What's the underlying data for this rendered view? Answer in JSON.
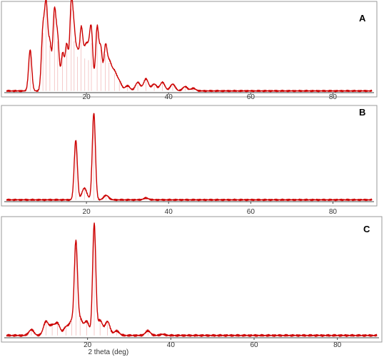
{
  "colors": {
    "trace": "#cc0000",
    "frame": "#9a9a9a",
    "axis": "#444444"
  },
  "chart_data": [
    {
      "panel": "A",
      "type": "line",
      "xlim": [
        0,
        90
      ],
      "xticks": [
        20,
        40,
        60,
        80
      ],
      "tick_labels": [
        "20",
        "40",
        "60",
        "80"
      ],
      "ylim": [
        0,
        100
      ],
      "baseline": 2,
      "peaks": [
        {
          "x": 6.3,
          "y": 50
        },
        {
          "x": 9.4,
          "y": 70
        },
        {
          "x": 10.2,
          "y": 98
        },
        {
          "x": 11.1,
          "y": 55
        },
        {
          "x": 12.2,
          "y": 92
        },
        {
          "x": 13.0,
          "y": 60
        },
        {
          "x": 14.2,
          "y": 45
        },
        {
          "x": 15.2,
          "y": 55
        },
        {
          "x": 16.3,
          "y": 98
        },
        {
          "x": 17.0,
          "y": 60
        },
        {
          "x": 17.8,
          "y": 42
        },
        {
          "x": 18.7,
          "y": 62
        },
        {
          "x": 19.6,
          "y": 40
        },
        {
          "x": 20.5,
          "y": 38
        },
        {
          "x": 21.2,
          "y": 58
        },
        {
          "x": 22.6,
          "y": 75
        },
        {
          "x": 23.5,
          "y": 50
        },
        {
          "x": 24.6,
          "y": 45
        },
        {
          "x": 25.5,
          "y": 35
        },
        {
          "x": 26.8,
          "y": 22
        },
        {
          "x": 28.0,
          "y": 12
        },
        {
          "x": 30.0,
          "y": 8
        },
        {
          "x": 32.5,
          "y": 12
        },
        {
          "x": 34.5,
          "y": 16
        },
        {
          "x": 36.5,
          "y": 10
        },
        {
          "x": 38.5,
          "y": 12
        },
        {
          "x": 41.0,
          "y": 10
        },
        {
          "x": 44.0,
          "y": 7
        },
        {
          "x": 46.0,
          "y": 5
        }
      ]
    },
    {
      "panel": "B",
      "type": "line",
      "xlim": [
        0,
        90
      ],
      "xticks": [
        20,
        40,
        60,
        80
      ],
      "tick_labels": [
        "20",
        "40",
        "60",
        "80"
      ],
      "ylim": [
        0,
        100
      ],
      "baseline": 2,
      "peaks": [
        {
          "x": 17.4,
          "y": 68
        },
        {
          "x": 19.5,
          "y": 15
        },
        {
          "x": 21.8,
          "y": 98
        },
        {
          "x": 24.8,
          "y": 7
        },
        {
          "x": 34.5,
          "y": 4
        },
        {
          "x": 38.5,
          "y": 2
        }
      ]
    },
    {
      "panel": "C",
      "type": "line",
      "xlim": [
        0,
        90
      ],
      "xticks": [
        20,
        40,
        60,
        80
      ],
      "tick_labels": [
        "20",
        "40",
        "60",
        "80"
      ],
      "ylim": [
        0,
        100
      ],
      "baseline": 2,
      "xlabel": "2 theta (deg)",
      "peaks": [
        {
          "x": 6.5,
          "y": 7
        },
        {
          "x": 10.0,
          "y": 14
        },
        {
          "x": 11.5,
          "y": 10
        },
        {
          "x": 12.8,
          "y": 12
        },
        {
          "x": 14.8,
          "y": 9
        },
        {
          "x": 16.2,
          "y": 14
        },
        {
          "x": 17.2,
          "y": 78
        },
        {
          "x": 18.2,
          "y": 16
        },
        {
          "x": 19.8,
          "y": 14
        },
        {
          "x": 21.6,
          "y": 98
        },
        {
          "x": 23.0,
          "y": 15
        },
        {
          "x": 24.8,
          "y": 14
        },
        {
          "x": 27.0,
          "y": 6
        },
        {
          "x": 34.5,
          "y": 6
        },
        {
          "x": 38.0,
          "y": 3
        },
        {
          "x": 43.0,
          "y": 2
        }
      ]
    }
  ]
}
